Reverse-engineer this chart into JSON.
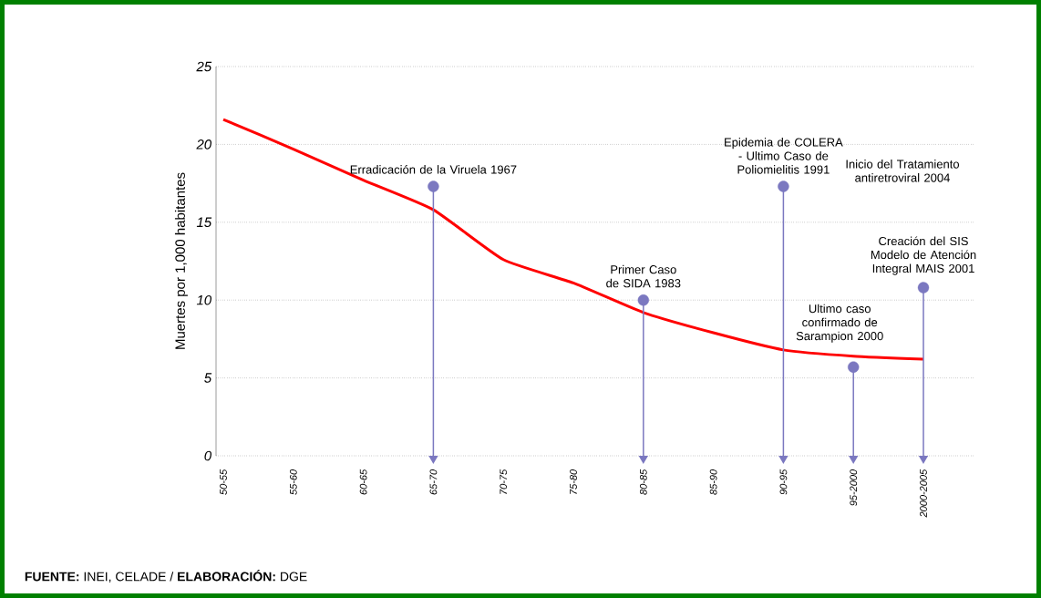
{
  "chart_data": {
    "type": "line",
    "ylabel": "Muertes por 1,000 habitantes",
    "categories": [
      "50-55",
      "55-60",
      "60-65",
      "65-70",
      "70-75",
      "75-80",
      "80-85",
      "85-90",
      "90-95",
      "95-2000",
      "2000-2005"
    ],
    "series": [
      {
        "color": "#ff0000",
        "values": [
          21.6,
          19.7,
          17.7,
          15.8,
          12.6,
          11.1,
          9.2,
          7.9,
          6.8,
          6.4,
          6.2
        ]
      },
      {
        "type": "scatter",
        "color": "#7b78c0",
        "marker": "circle",
        "values": [
          null,
          null,
          null,
          17.3,
          null,
          null,
          10,
          null,
          17.3,
          5.7,
          10.8
        ],
        "errors": [
          null,
          null,
          null,
          [
            0,
            17.3
          ],
          null,
          null,
          [
            0,
            10
          ],
          null,
          [
            0,
            17.3
          ],
          [
            0,
            5.7
          ],
          [
            0,
            10.8
          ]
        ]
      }
    ],
    "ylim": [
      0,
      25
    ],
    "yticks": [
      0,
      5,
      10,
      15,
      20,
      25
    ],
    "grid": "y",
    "annotations": [
      {
        "text": "Erradicación de la Viruela 1967",
        "x": "65-70",
        "y": 17.3
      },
      {
        "text": "Primer Caso de SIDA 1983",
        "x": "80-85",
        "y": 10
      },
      {
        "text": "Epidemia de COLERA - Ultimo Caso de Poliomielitis 1991",
        "x": "90-95",
        "y": 17.3
      },
      {
        "text": "Ultimo caso confirmado de Sarampion 2000",
        "x": "95-2000",
        "y": 5.7
      },
      {
        "text": "Creación del SIS Modelo de Atención Integral MAIS 2001",
        "x": "2000-2005",
        "y": 10.8
      },
      "Inicio del Tratamiento antiretroviral 2004",
      "**FUENTE:** INEI, CELADE / **ELABORACIÓN:** DGE"
    ]
  }
}
